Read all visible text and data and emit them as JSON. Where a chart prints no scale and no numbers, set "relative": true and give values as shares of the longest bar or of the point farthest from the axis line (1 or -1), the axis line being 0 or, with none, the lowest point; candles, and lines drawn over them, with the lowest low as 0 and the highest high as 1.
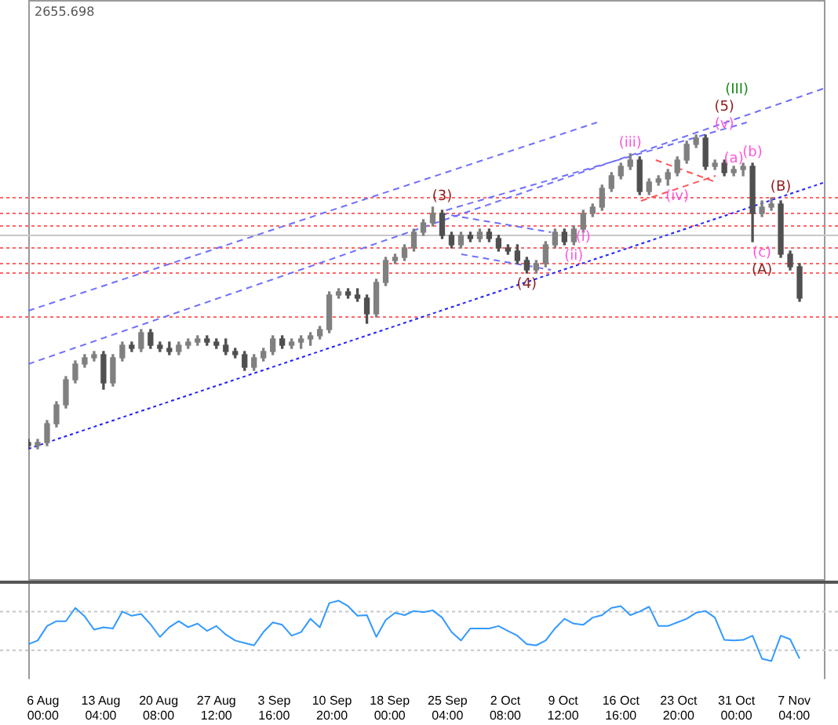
{
  "chart_data": [
    {
      "type": "candlestick",
      "relative": true,
      "colors": [
        "#505050",
        "#808080",
        "#808080",
        "#808080",
        "#808080",
        "#808080",
        "#808080",
        "#808080",
        "#505050",
        "#808080",
        "#808080",
        "#505050",
        "#808080",
        "#505050",
        "#505050",
        "#505050",
        "#808080",
        "#808080",
        "#808080",
        "#505050",
        "#505050",
        "#505050",
        "#505050",
        "#505050",
        "#808080",
        "#808080",
        "#808080",
        "#505050",
        "#808080",
        "#808080",
        "#808080",
        "#808080",
        "#808080",
        "#808080",
        "#505050",
        "#505050",
        "#505050",
        "#808080",
        "#808080",
        "#808080",
        "#808080",
        "#808080",
        "#808080",
        "#808080",
        "#505050",
        "#505050",
        "#808080",
        "#505050",
        "#808080",
        "#505050",
        "#505050",
        "#505050",
        "#505050",
        "#505050",
        "#808080",
        "#808080",
        "#808080",
        "#505050",
        "#808080",
        "#808080",
        "#808080",
        "#808080",
        "#808080",
        "#808080",
        "#808080",
        "#505050",
        "#808080",
        "#808080",
        "#808080",
        "#808080",
        "#808080",
        "#808080",
        "#505050",
        "#808080",
        "#505050",
        "#808080",
        "#808080",
        "#505050",
        "#808080",
        "#808080",
        "#505050",
        "#505050",
        "#505050"
      ],
      "legend": false,
      "tick_labels": false,
      "x": [
        "--08-04T04:00",
        "--08-05T08:00",
        "--08-06T12:00",
        "--08-07T16:00",
        "--08-08T20:00",
        "--08-10T00:00",
        "--08-11T04:00",
        "--08-12T08:00",
        "--08-13T12:00",
        "--08-14T16:00",
        "--08-15T20:00",
        "--08-17T00:00",
        "--08-18T04:00",
        "--08-19T08:00",
        "--08-20T12:00",
        "--08-21T16:00",
        "--08-22T20:00",
        "--08-24T00:00",
        "--08-25T04:00",
        "--08-26T08:00",
        "--08-27T12:00",
        "--08-28T16:00",
        "--08-29T20:00",
        "--08-31T00:00",
        "--09-01T04:00",
        "--09-02T08:00",
        "--09-03T12:00",
        "--09-04T16:00",
        "--09-05T20:00",
        "--09-07T00:00",
        "--09-08T04:00",
        "--09-09T08:00",
        "--09-10T12:00",
        "--09-11T16:00",
        "--09-12T20:00",
        "--09-14T00:00",
        "--09-15T04:00",
        "--09-16T08:00",
        "--09-17T12:00",
        "--09-18T16:00",
        "--09-19T20:00",
        "--09-21T00:00",
        "--09-22T04:00",
        "--09-23T08:00",
        "--09-24T12:00",
        "--09-25T16:00",
        "--09-26T20:00",
        "--09-28T00:00",
        "--09-29T04:00",
        "--09-30T08:00",
        "--10-01T12:00",
        "--10-02T16:00",
        "--10-03T20:00",
        "--10-05T00:00",
        "--10-06T04:00",
        "--10-07T08:00",
        "--10-08T12:00",
        "--10-09T16:00",
        "--10-10T20:00",
        "--10-12T00:00",
        "--10-13T04:00",
        "--10-14T08:00",
        "--10-15T12:00",
        "--10-16T16:00",
        "--10-17T20:00",
        "--10-19T00:00",
        "--10-20T04:00",
        "--10-21T08:00",
        "--10-22T12:00",
        "--10-23T16:00",
        "--10-24T20:00",
        "--10-26T00:00",
        "--10-27T04:00",
        "--10-28T08:00",
        "--10-29T12:00",
        "--10-30T16:00",
        "--10-31T20:00",
        "--11-02T00:00",
        "--11-03T04:00",
        "--11-04T08:00",
        "--11-05T12:00",
        "--11-06T16:00",
        "--11-07T20:00"
      ],
      "ohlc": [
        [
          0.02,
          0.03,
          0,
          0.01
        ],
        [
          0.01,
          0.03,
          0,
          0.02
        ],
        [
          0.02,
          0.09,
          0.01,
          0.08
        ],
        [
          0.08,
          0.15,
          0.07,
          0.14
        ],
        [
          0.14,
          0.23,
          0.13,
          0.22
        ],
        [
          0.22,
          0.28,
          0.21,
          0.27
        ],
        [
          0.27,
          0.3,
          0.26,
          0.29
        ],
        [
          0.29,
          0.31,
          0.28,
          0.3
        ],
        [
          0.3,
          0.31,
          0.19,
          0.21
        ],
        [
          0.21,
          0.3,
          0.2,
          0.29
        ],
        [
          0.29,
          0.34,
          0.28,
          0.33
        ],
        [
          0.33,
          0.34,
          0.31,
          0.32
        ],
        [
          0.32,
          0.38,
          0.31,
          0.37
        ],
        [
          0.37,
          0.38,
          0.32,
          0.33
        ],
        [
          0.33,
          0.34,
          0.31,
          0.32
        ],
        [
          0.32,
          0.34,
          0.3,
          0.31
        ],
        [
          0.31,
          0.34,
          0.3,
          0.33
        ],
        [
          0.33,
          0.35,
          0.32,
          0.34
        ],
        [
          0.34,
          0.36,
          0.33,
          0.35
        ],
        [
          0.35,
          0.36,
          0.33,
          0.34
        ],
        [
          0.34,
          0.35,
          0.32,
          0.33
        ],
        [
          0.33,
          0.35,
          0.3,
          0.31
        ],
        [
          0.31,
          0.32,
          0.29,
          0.3
        ],
        [
          0.3,
          0.31,
          0.25,
          0.26
        ],
        [
          0.26,
          0.3,
          0.25,
          0.29
        ],
        [
          0.29,
          0.32,
          0.28,
          0.31
        ],
        [
          0.31,
          0.36,
          0.3,
          0.35
        ],
        [
          0.35,
          0.36,
          0.32,
          0.33
        ],
        [
          0.33,
          0.35,
          0.32,
          0.34
        ],
        [
          0.34,
          0.36,
          0.32,
          0.35
        ],
        [
          0.35,
          0.37,
          0.33,
          0.36
        ],
        [
          0.36,
          0.39,
          0.35,
          0.38
        ],
        [
          0.38,
          0.5,
          0.37,
          0.49
        ],
        [
          0.49,
          0.51,
          0.48,
          0.5
        ],
        [
          0.5,
          0.51,
          0.48,
          0.49
        ],
        [
          0.49,
          0.51,
          0.47,
          0.48
        ],
        [
          0.48,
          0.49,
          0.4,
          0.43
        ],
        [
          0.43,
          0.54,
          0.42,
          0.53
        ],
        [
          0.53,
          0.61,
          0.52,
          0.6
        ],
        [
          0.6,
          0.62,
          0.59,
          0.61
        ],
        [
          0.61,
          0.65,
          0.6,
          0.64
        ],
        [
          0.64,
          0.7,
          0.63,
          0.69
        ],
        [
          0.69,
          0.73,
          0.68,
          0.72
        ],
        [
          0.72,
          0.77,
          0.71,
          0.75
        ],
        [
          0.75,
          0.76,
          0.67,
          0.68
        ],
        [
          0.68,
          0.69,
          0.64,
          0.65
        ],
        [
          0.65,
          0.69,
          0.64,
          0.68
        ],
        [
          0.68,
          0.69,
          0.66,
          0.67
        ],
        [
          0.67,
          0.7,
          0.66,
          0.69
        ],
        [
          0.69,
          0.7,
          0.66,
          0.67
        ],
        [
          0.67,
          0.68,
          0.63,
          0.64
        ],
        [
          0.64,
          0.65,
          0.62,
          0.63
        ],
        [
          0.63,
          0.65,
          0.59,
          0.6
        ],
        [
          0.6,
          0.61,
          0.56,
          0.57
        ],
        [
          0.57,
          0.6,
          0.56,
          0.59
        ],
        [
          0.59,
          0.66,
          0.58,
          0.65
        ],
        [
          0.65,
          0.7,
          0.64,
          0.69
        ],
        [
          0.69,
          0.7,
          0.65,
          0.66
        ],
        [
          0.66,
          0.71,
          0.65,
          0.7
        ],
        [
          0.7,
          0.76,
          0.69,
          0.75
        ],
        [
          0.75,
          0.78,
          0.74,
          0.77
        ],
        [
          0.77,
          0.84,
          0.76,
          0.83
        ],
        [
          0.83,
          0.88,
          0.82,
          0.87
        ],
        [
          0.87,
          0.91,
          0.86,
          0.9
        ],
        [
          0.9,
          0.94,
          0.89,
          0.92
        ],
        [
          0.92,
          0.93,
          0.81,
          0.82
        ],
        [
          0.82,
          0.86,
          0.81,
          0.85
        ],
        [
          0.85,
          0.87,
          0.84,
          0.86
        ],
        [
          0.86,
          0.89,
          0.84,
          0.88
        ],
        [
          0.88,
          0.93,
          0.87,
          0.92
        ],
        [
          0.92,
          0.98,
          0.91,
          0.97
        ],
        [
          0.97,
          1,
          0.96,
          0.99
        ],
        [
          0.99,
          1,
          0.89,
          0.9
        ],
        [
          0.9,
          0.92,
          0.89,
          0.91
        ],
        [
          0.91,
          0.92,
          0.87,
          0.88
        ],
        [
          0.88,
          0.9,
          0.87,
          0.89
        ],
        [
          0.89,
          0.91,
          0.87,
          0.9
        ],
        [
          0.9,
          0.91,
          0.66,
          0.75
        ],
        [
          0.75,
          0.79,
          0.74,
          0.77
        ],
        [
          0.77,
          0.8,
          0.76,
          0.78
        ],
        [
          0.78,
          0.79,
          0.61,
          0.62
        ],
        [
          0.62,
          0.63,
          0.57,
          0.58
        ],
        [
          0.58,
          0.59,
          0.47,
          0.48
        ]
      ],
      "xlim": [
        "--08-04T04:00",
        "--11-11T01:00"
      ],
      "series": [
        {
          "type": "line",
          "color": "#6f6fff",
          "line_style": "dashed",
          "x": [
            "--08-04T04:00",
            "--10-13T17:00"
          ],
          "values": [
            0.44,
            1.04
          ]
        },
        {
          "type": "line",
          "color": "#6f6fff",
          "line_style": "dashed",
          "x": [
            "--08-04T04:00",
            "--11-11T01:00"
          ],
          "values": [
            0.27,
            1.15
          ]
        },
        {
          "type": "line",
          "color": "#6f6fff",
          "line_style": "dashed",
          "x": [
            "--09-25T00:00",
            "--11-01T07:00"
          ],
          "values": [
            0.76,
            1.04
          ]
        },
        {
          "type": "line",
          "color": "#2222ff",
          "line_style": "dotted",
          "x": [
            "--08-04T04:00",
            "--11-11T01:00"
          ],
          "values": [
            0,
            0.85
          ]
        },
        {
          "type": "line",
          "color": "#6f6fff",
          "line_style": "dashed",
          "x": [
            "--09-24T07:00",
            "--10-08T00:00"
          ],
          "values": [
            0.75,
            0.69
          ]
        },
        {
          "type": "line",
          "color": "#6f6fff",
          "line_style": "dashed",
          "x": [
            "--09-26T21:00",
            "--10-08T00:00"
          ],
          "values": [
            0.62,
            0.57
          ]
        },
        {
          "type": "line",
          "color": "#ff5555",
          "line_style": "dashed",
          "x": [
            "--10-21T00:00",
            "--10-28T10:00"
          ],
          "values": [
            0.92,
            0.85
          ]
        },
        {
          "type": "line",
          "color": "#ff5555",
          "line_style": "dashed",
          "x": [
            "--10-19T04:00",
            "--10-28T10:00"
          ],
          "values": [
            0.79,
            0.87
          ]
        }
      ],
      "ref_lines": [
        {
          "axis": "y",
          "value": 0.8,
          "color": "#ff6666",
          "line_style": "dotted"
        },
        {
          "axis": "y",
          "value": 0.75,
          "color": "#ff6666",
          "line_style": "dotted"
        },
        {
          "axis": "y",
          "value": 0.71,
          "color": "#ff6666",
          "line_style": "dotted"
        },
        {
          "axis": "y",
          "value": 0.68,
          "color": "#c8c8c8",
          "line_style": "solid"
        },
        {
          "axis": "y",
          "value": 0.64,
          "color": "#ff6666",
          "line_style": "dotted"
        },
        {
          "axis": "y",
          "value": 0.59,
          "color": "#ff6666",
          "line_style": "dotted"
        },
        {
          "axis": "y",
          "value": 0.56,
          "color": "#ff6666",
          "line_style": "dotted"
        },
        {
          "axis": "y",
          "value": 0.42,
          "color": "#ff6666",
          "line_style": "dotted"
        }
      ],
      "annotations": [
        "2655.698",
        {
          "text": "(3)",
          "x": "--09-24T12:00",
          "y": 0.77
        },
        {
          "text": "(4)",
          "x": "--10-05T00:00",
          "y": 0.56
        },
        {
          "text": "(v)",
          "x": "--10-29T12:00",
          "y": 1
        },
        {
          "text": "(5)",
          "x": "--10-29T12:00",
          "y": 1
        },
        {
          "text": "(III)",
          "x": "--10-29T12:00",
          "y": 1
        },
        {
          "text": "(i)",
          "x": "--10-12T00:00",
          "y": 0.71
        },
        {
          "text": "(ii)",
          "x": "--10-10T20:00",
          "y": 0.65
        },
        {
          "text": "(iii)",
          "x": "--10-17T20:00",
          "y": 0.94
        },
        {
          "text": "(iv)",
          "x": "--10-23T16:00",
          "y": 0.84
        },
        {
          "text": "(a)",
          "x": "--10-30T16:00",
          "y": 0.89
        },
        {
          "text": "(b)",
          "x": "--11-02T00:00",
          "y": 0.91
        },
        {
          "text": "(c)",
          "x": "--11-03T04:00",
          "y": 0.66
        },
        {
          "text": "(A)",
          "x": "--11-03T04:00",
          "y": 0.66
        },
        {
          "text": "(B)",
          "x": "--11-05T12:00",
          "y": 0.8
        }
      ]
    },
    {
      "type": "line",
      "relative": true,
      "color": "#3399ff",
      "legend": false,
      "tick_labels": "x",
      "marker": "none",
      "x": [
        "--08-04T04:00",
        "--08-05T08:00",
        "--08-06T12:00",
        "--08-07T16:00",
        "--08-08T20:00",
        "--08-10T00:00",
        "--08-11T04:00",
        "--08-12T08:00",
        "--08-13T12:00",
        "--08-14T16:00",
        "--08-15T20:00",
        "--08-17T00:00",
        "--08-18T04:00",
        "--08-19T08:00",
        "--08-20T12:00",
        "--08-21T16:00",
        "--08-22T20:00",
        "--08-24T00:00",
        "--08-25T04:00",
        "--08-26T08:00",
        "--08-27T12:00",
        "--08-28T16:00",
        "--08-29T20:00",
        "--08-31T00:00",
        "--09-01T04:00",
        "--09-02T08:00",
        "--09-03T12:00",
        "--09-04T16:00",
        "--09-05T20:00",
        "--09-07T00:00",
        "--09-08T04:00",
        "--09-09T08:00",
        "--09-10T12:00",
        "--09-11T16:00",
        "--09-12T20:00",
        "--09-14T00:00",
        "--09-15T04:00",
        "--09-16T08:00",
        "--09-17T12:00",
        "--09-18T16:00",
        "--09-19T20:00",
        "--09-21T00:00",
        "--09-22T04:00",
        "--09-23T08:00",
        "--09-24T12:00",
        "--09-25T16:00",
        "--09-26T20:00",
        "--09-28T00:00",
        "--09-29T04:00",
        "--09-30T08:00",
        "--10-01T12:00",
        "--10-02T16:00",
        "--10-03T20:00",
        "--10-05T00:00",
        "--10-06T04:00",
        "--10-07T08:00",
        "--10-08T12:00",
        "--10-09T16:00",
        "--10-10T20:00",
        "--10-12T00:00",
        "--10-13T04:00",
        "--10-14T08:00",
        "--10-15T12:00",
        "--10-16T16:00",
        "--10-17T20:00",
        "--10-19T00:00",
        "--10-20T04:00",
        "--10-21T08:00",
        "--10-22T12:00",
        "--10-23T16:00",
        "--10-24T20:00",
        "--10-26T00:00",
        "--10-27T04:00",
        "--10-28T08:00",
        "--10-29T12:00",
        "--10-30T16:00",
        "--10-31T20:00",
        "--11-02T00:00",
        "--11-03T04:00",
        "--11-04T08:00",
        "--11-05T12:00",
        "--11-06T16:00",
        "--11-07T20:00"
      ],
      "values": [
        0.28,
        0.34,
        0.58,
        0.66,
        0.66,
        0.88,
        0.74,
        0.52,
        0.56,
        0.54,
        0.82,
        0.75,
        0.78,
        0.61,
        0.4,
        0.56,
        0.66,
        0.56,
        0.62,
        0.5,
        0.58,
        0.44,
        0.34,
        0.3,
        0.26,
        0.48,
        0.64,
        0.6,
        0.42,
        0.48,
        0.7,
        0.56,
        0.96,
        1.0,
        0.91,
        0.75,
        0.76,
        0.4,
        0.68,
        0.8,
        0.76,
        0.83,
        0.81,
        0.84,
        0.72,
        0.48,
        0.34,
        0.54,
        0.54,
        0.54,
        0.58,
        0.5,
        0.42,
        0.28,
        0.26,
        0.34,
        0.54,
        0.7,
        0.62,
        0.6,
        0.72,
        0.76,
        0.88,
        0.91,
        0.76,
        0.82,
        0.9,
        0.58,
        0.58,
        0.64,
        0.7,
        0.8,
        0.83,
        0.72,
        0.35,
        0.34,
        0.35,
        0.42,
        0.04,
        0.0,
        0.42,
        0.36,
        0.04
      ],
      "xlim": [
        "--08-04T04:00",
        "--11-11T01:00"
      ],
      "xticks": [
        {
          "value": "--08-06T00:00",
          "label": "6 Aug 00:00"
        },
        {
          "value": "--08-13T04:00",
          "label": "13 Aug 04:00"
        },
        {
          "value": "--08-20T08:00",
          "label": "20 Aug 08:00"
        },
        {
          "value": "--08-27T12:00",
          "label": "27 Aug 12:00"
        },
        {
          "value": "--09-03T16:00",
          "label": "3 Sep 16:00"
        },
        {
          "value": "--09-10T20:00",
          "label": "10 Sep 20:00"
        },
        {
          "value": "--09-18T00:00",
          "label": "18 Sep 00:00"
        },
        {
          "value": "--09-25T04:00",
          "label": "25 Sep 04:00"
        },
        {
          "value": "--10-02T08:00",
          "label": "2 Oct 08:00"
        },
        {
          "value": "--10-09T12:00",
          "label": "9 Oct 12:00"
        },
        {
          "value": "--10-16T16:00",
          "label": "16 Oct 16:00"
        },
        {
          "value": "--10-23T20:00",
          "label": "23 Oct 20:00"
        },
        {
          "value": "--10-31T00:00",
          "label": "31 Oct 00:00"
        },
        {
          "value": "--11-07T04:00",
          "label": "7 Nov 04:00"
        }
      ],
      "ref_lines": [
        {
          "axis": "y",
          "value": 0.82,
          "color": "#c8c8c8",
          "line_style": "dotted"
        },
        {
          "axis": "y",
          "value": 0.18,
          "color": "#c8c8c8",
          "line_style": "dotted"
        }
      ]
    }
  ]
}
